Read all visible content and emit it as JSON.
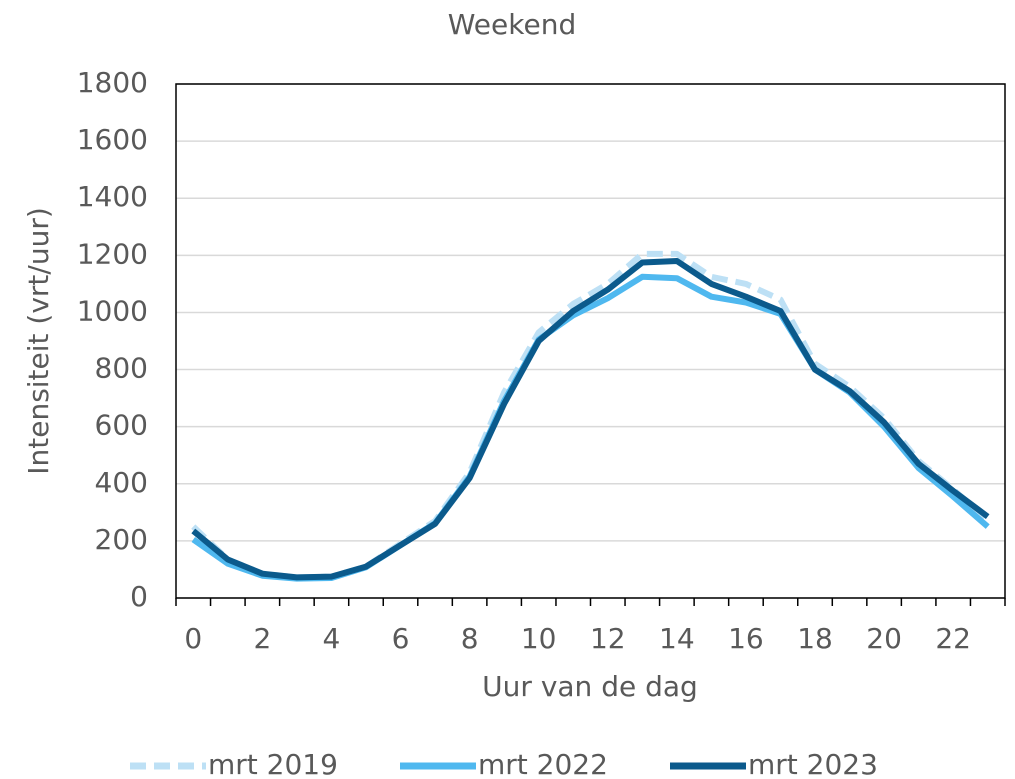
{
  "chart_data": {
    "type": "line",
    "title": "Weekend",
    "x_label": "Uur van de dag",
    "y_label": "Intensiteit (vrt/uur)",
    "categories": [
      0,
      null,
      2,
      null,
      4,
      null,
      6,
      null,
      8,
      null,
      10,
      null,
      12,
      null,
      14,
      null,
      16,
      null,
      18,
      null,
      20,
      null,
      22,
      null
    ],
    "series": [
      {
        "name": "mrt 2019",
        "color": "#bde0f5",
        "dashed": true,
        "values": [
          250,
          135,
          85,
          72,
          75,
          110,
          190,
          270,
          440,
          720,
          930,
          1030,
          1100,
          1205,
          1205,
          1125,
          1100,
          1045,
          820,
          740,
          630,
          480,
          380,
          275
        ]
      },
      {
        "name": "mrt 2022",
        "color": "#4fb8ef",
        "dashed": false,
        "values": [
          205,
          120,
          78,
          68,
          70,
          108,
          185,
          262,
          425,
          690,
          905,
          990,
          1050,
          1125,
          1120,
          1055,
          1035,
          995,
          800,
          720,
          600,
          455,
          355,
          250
        ]
      },
      {
        "name": "mrt 2023",
        "color": "#0b5a8c",
        "dashed": false,
        "values": [
          235,
          135,
          85,
          72,
          75,
          110,
          185,
          260,
          420,
          680,
          900,
          1005,
          1080,
          1175,
          1180,
          1100,
          1055,
          1005,
          800,
          725,
          615,
          470,
          375,
          285
        ]
      }
    ],
    "ylim": [
      0,
      1800
    ],
    "yticks": [
      0,
      200,
      400,
      600,
      800,
      1000,
      1200,
      1400,
      1600,
      1800
    ],
    "grid": true,
    "legend": "bottom"
  }
}
